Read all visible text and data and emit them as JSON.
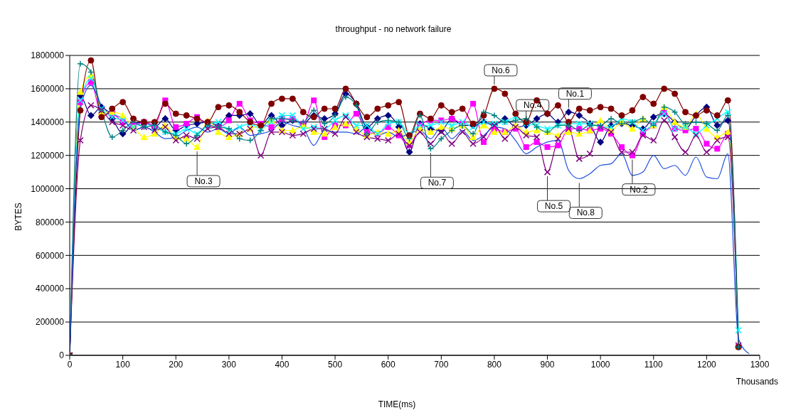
{
  "chart_data": {
    "type": "line",
    "title": "throughput - no network failure",
    "xlabel": "TIME(ms)",
    "ylabel": "BYTES",
    "x": [
      0,
      20,
      40,
      60,
      80,
      100,
      120,
      140,
      160,
      180,
      200,
      220,
      240,
      260,
      280,
      300,
      320,
      340,
      360,
      380,
      400,
      420,
      440,
      460,
      480,
      500,
      520,
      540,
      560,
      580,
      600,
      620,
      640,
      660,
      680,
      700,
      720,
      740,
      760,
      780,
      800,
      820,
      840,
      860,
      880,
      900,
      920,
      940,
      960,
      980,
      1000,
      1020,
      1040,
      1060,
      1080,
      1100,
      1120,
      1140,
      1160,
      1180,
      1200,
      1220,
      1240,
      1260,
      1280
    ],
    "xlim": [
      0,
      1300
    ],
    "xticks": [
      0,
      100,
      200,
      300,
      400,
      500,
      600,
      700,
      800,
      900,
      1000,
      1100,
      1200,
      1300
    ],
    "ylim": [
      0,
      1800000
    ],
    "yticks": [
      0,
      200000,
      400000,
      600000,
      800000,
      1000000,
      1200000,
      1400000,
      1600000,
      1800000
    ],
    "grid": "y",
    "legend": false,
    "line_style": "solid",
    "series": [
      {
        "color": "#000080",
        "marker": "diamond",
        "values": [
          0,
          1560000,
          1440000,
          1490000,
          1420000,
          1330000,
          1390000,
          1400000,
          1370000,
          1420000,
          1350000,
          1380000,
          1390000,
          1400000,
          1380000,
          1440000,
          1440000,
          1450000,
          1380000,
          1440000,
          1380000,
          1410000,
          1390000,
          1440000,
          1420000,
          1450000,
          1570000,
          1510000,
          1370000,
          1420000,
          1440000,
          1370000,
          1220000,
          1390000,
          1360000,
          1350000,
          1420000,
          1380000,
          1380000,
          1400000,
          1380000,
          1420000,
          1370000,
          1380000,
          1420000,
          1450000,
          1400000,
          1460000,
          1440000,
          1390000,
          1280000,
          1380000,
          1390000,
          1380000,
          1360000,
          1430000,
          1450000,
          1400000,
          1360000,
          1440000,
          1490000,
          1380000,
          1410000,
          50000,
          null
        ]
      },
      {
        "color": "#ff00ff",
        "marker": "square",
        "values": [
          0,
          1520000,
          1640000,
          1440000,
          1450000,
          1400000,
          1380000,
          1400000,
          1380000,
          1530000,
          1370000,
          1390000,
          1430000,
          1380000,
          1370000,
          1410000,
          1510000,
          1410000,
          1390000,
          1370000,
          1420000,
          1420000,
          1390000,
          1530000,
          1310000,
          1380000,
          1380000,
          1450000,
          1340000,
          1330000,
          1370000,
          1320000,
          1260000,
          1380000,
          1410000,
          1410000,
          1420000,
          1390000,
          1510000,
          1280000,
          1360000,
          1340000,
          1360000,
          1250000,
          1280000,
          1250000,
          1260000,
          1360000,
          1360000,
          1350000,
          1360000,
          1330000,
          1250000,
          1200000,
          1330000,
          1380000,
          1460000,
          1360000,
          1350000,
          1360000,
          1270000,
          1240000,
          1330000,
          50000,
          null
        ]
      },
      {
        "color": "#ffff00",
        "marker": "triangle",
        "values": [
          0,
          1580000,
          1680000,
          1460000,
          1460000,
          1440000,
          1370000,
          1310000,
          1330000,
          1380000,
          1310000,
          1300000,
          1250000,
          1410000,
          1340000,
          1310000,
          1330000,
          1360000,
          1380000,
          1410000,
          1350000,
          1350000,
          1380000,
          1340000,
          1330000,
          1370000,
          1390000,
          1360000,
          1320000,
          1340000,
          1330000,
          1350000,
          1280000,
          1360000,
          1340000,
          1370000,
          1360000,
          1380000,
          1310000,
          1380000,
          1340000,
          1340000,
          1380000,
          1340000,
          1350000,
          1340000,
          1320000,
          1340000,
          1330000,
          1350000,
          1410000,
          1350000,
          1400000,
          1360000,
          1420000,
          1380000,
          1490000,
          1400000,
          1370000,
          1450000,
          1360000,
          1310000,
          1340000,
          50000,
          null
        ]
      },
      {
        "color": "#00ffff",
        "marker": "cross",
        "values": [
          0,
          1530000,
          1660000,
          1480000,
          1430000,
          1410000,
          1370000,
          1390000,
          1370000,
          1340000,
          1330000,
          1360000,
          1330000,
          1380000,
          1400000,
          1350000,
          1370000,
          1390000,
          1360000,
          1400000,
          1440000,
          1440000,
          1360000,
          1370000,
          1360000,
          1410000,
          1440000,
          1380000,
          1380000,
          1330000,
          1390000,
          1400000,
          1330000,
          1380000,
          1380000,
          1400000,
          1380000,
          1400000,
          1370000,
          1400000,
          1390000,
          1400000,
          1430000,
          1390000,
          1380000,
          1360000,
          1380000,
          1390000,
          1390000,
          1390000,
          1370000,
          1370000,
          1420000,
          1400000,
          1350000,
          1390000,
          1450000,
          1360000,
          1370000,
          1330000,
          1380000,
          1420000,
          1460000,
          150000,
          null
        ]
      },
      {
        "color": "#800080",
        "marker": "cross",
        "values": [
          0,
          1290000,
          1500000,
          1470000,
          1400000,
          1380000,
          1350000,
          1370000,
          1350000,
          1370000,
          1290000,
          1320000,
          1300000,
          1360000,
          1370000,
          1330000,
          1330000,
          1360000,
          1200000,
          1340000,
          1340000,
          1320000,
          1330000,
          1360000,
          1360000,
          1330000,
          1430000,
          1340000,
          1310000,
          1300000,
          1290000,
          1330000,
          1260000,
          1340000,
          1270000,
          1340000,
          1270000,
          1340000,
          1270000,
          1310000,
          1380000,
          1300000,
          1370000,
          1320000,
          1310000,
          1100000,
          1300000,
          1360000,
          1180000,
          1210000,
          1370000,
          1340000,
          1220000,
          1220000,
          1320000,
          1290000,
          1410000,
          1310000,
          1220000,
          1320000,
          1220000,
          1290000,
          1310000,
          60000,
          null
        ]
      },
      {
        "color": "#800000",
        "marker": "circle",
        "values": [
          0,
          1470000,
          1770000,
          1430000,
          1480000,
          1520000,
          1420000,
          1400000,
          1400000,
          1510000,
          1450000,
          1440000,
          1420000,
          1400000,
          1490000,
          1500000,
          1460000,
          1400000,
          1380000,
          1510000,
          1540000,
          1540000,
          1460000,
          1430000,
          1480000,
          1480000,
          1600000,
          1510000,
          1430000,
          1480000,
          1500000,
          1520000,
          1320000,
          1450000,
          1420000,
          1500000,
          1460000,
          1480000,
          1390000,
          1440000,
          1600000,
          1570000,
          1450000,
          1400000,
          1530000,
          1450000,
          1500000,
          1400000,
          1480000,
          1470000,
          1490000,
          1480000,
          1440000,
          1470000,
          1550000,
          1510000,
          1600000,
          1570000,
          1460000,
          1440000,
          1470000,
          1440000,
          1530000,
          50000,
          null
        ]
      },
      {
        "color": "#008080",
        "marker": "plus",
        "values": [
          0,
          1750000,
          1700000,
          1470000,
          1310000,
          1350000,
          1400000,
          1370000,
          1380000,
          1340000,
          1320000,
          1270000,
          1320000,
          1380000,
          1370000,
          1360000,
          1300000,
          1290000,
          1350000,
          1420000,
          1420000,
          1410000,
          1400000,
          1470000,
          1390000,
          1440000,
          1550000,
          1500000,
          1330000,
          1400000,
          1410000,
          1400000,
          1300000,
          1440000,
          1240000,
          1300000,
          1350000,
          1380000,
          1330000,
          1460000,
          1440000,
          1400000,
          1410000,
          1420000,
          1370000,
          1340000,
          1380000,
          1380000,
          1350000,
          1380000,
          1380000,
          1420000,
          1390000,
          1400000,
          1420000,
          1380000,
          1490000,
          1460000,
          1390000,
          1400000,
          1390000,
          1350000,
          1440000,
          50000,
          null
        ]
      },
      {
        "color": "#1f4fe0",
        "marker": "none",
        "values": [
          0,
          1480000,
          1620000,
          1500000,
          1450000,
          1420000,
          1350000,
          1370000,
          1340000,
          1300000,
          1310000,
          1350000,
          1370000,
          1340000,
          1360000,
          1330000,
          1370000,
          1320000,
          1330000,
          1350000,
          1400000,
          1380000,
          1360000,
          1260000,
          1350000,
          1340000,
          1340000,
          1330000,
          1370000,
          1320000,
          1340000,
          1310000,
          1330000,
          1350000,
          1300000,
          1370000,
          1300000,
          1350000,
          1290000,
          1320000,
          1370000,
          1360000,
          1290000,
          1210000,
          1250000,
          1280000,
          1290000,
          1110000,
          1060000,
          1090000,
          1140000,
          1150000,
          1210000,
          1080000,
          1100000,
          1200000,
          1120000,
          1140000,
          1080000,
          1190000,
          1070000,
          1060000,
          1210000,
          100000,
          10000
        ]
      }
    ],
    "annotations": [
      {
        "text": "No.6",
        "x": 800,
        "y": 1600000
      },
      {
        "text": "No.4",
        "x": 860,
        "y": 1390000
      },
      {
        "text": "No.1",
        "x": 940,
        "y": 1460000
      },
      {
        "text": "No.3",
        "x": 240,
        "y": 1250000
      },
      {
        "text": "No.7",
        "x": 680,
        "y": 1240000
      },
      {
        "text": "No.5",
        "x": 900,
        "y": 1100000
      },
      {
        "text": "No.8",
        "x": 960,
        "y": 1060000
      },
      {
        "text": "No.2",
        "x": 1060,
        "y": 1200000
      },
      "Thousands"
    ]
  }
}
